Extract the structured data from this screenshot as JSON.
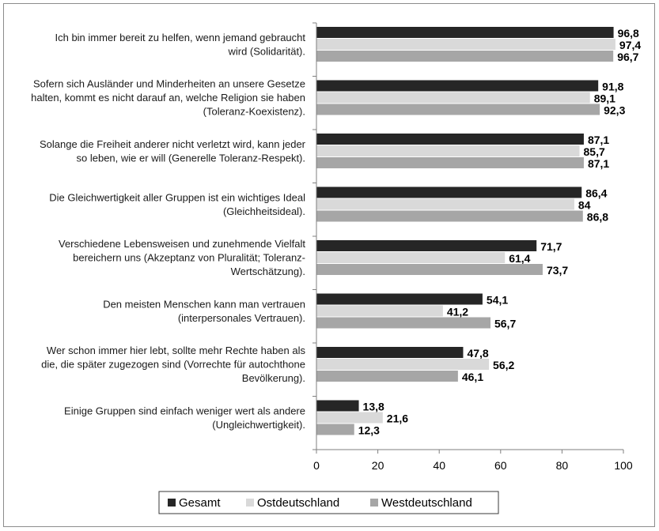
{
  "chart_data": {
    "type": "bar",
    "orientation": "horizontal",
    "categories": [
      [
        "Ich bin immer bereit zu helfen, wenn jemand gebraucht",
        "wird (Solidarität)."
      ],
      [
        "Sofern sich Ausländer und Minderheiten an unsere Gesetze",
        "halten, kommt es nicht darauf an, welche Religion sie haben",
        "(Toleranz-Koexistenz)."
      ],
      [
        "Solange die Freiheit anderer nicht verletzt wird, kann jeder",
        "so leben, wie er will (Generelle Toleranz-Respekt)."
      ],
      [
        "Die Gleichwertigkeit aller Gruppen ist ein wichtiges Ideal",
        "(Gleichheitsideal)."
      ],
      [
        "Verschiedene Lebensweisen und zunehmende Vielfalt",
        "bereichern uns (Akzeptanz von Pluralität; Toleranz-",
        "Wertschätzung)."
      ],
      [
        "Den meisten Menschen kann man vertrauen",
        "(interpersonales Vertrauen)."
      ],
      [
        "Wer schon immer hier lebt, sollte mehr Rechte haben als",
        "die, die später zugezogen sind (Vorrechte für autochthone",
        "Bevölkerung)."
      ],
      [
        "Einige Gruppen sind einfach weniger wert als andere",
        "(Ungleichwertigkeit)."
      ]
    ],
    "series": [
      {
        "name": "Gesamt",
        "color": "#262626",
        "values": [
          96.8,
          91.8,
          87.1,
          86.4,
          71.7,
          54.1,
          47.8,
          13.8
        ],
        "labels": [
          "96,8",
          "91,8",
          "87,1",
          "86,4",
          "71,7",
          "54,1",
          "47,8",
          "13,8"
        ]
      },
      {
        "name": "Ostdeutschland",
        "color": "#d9d9d9",
        "values": [
          97.4,
          89.1,
          85.7,
          84,
          61.4,
          41.2,
          56.2,
          21.6
        ],
        "labels": [
          "97,4",
          "89,1",
          "85,7",
          "84",
          "61,4",
          "41,2",
          "56,2",
          "21,6"
        ]
      },
      {
        "name": "Westdeutschland",
        "color": "#a6a6a6",
        "values": [
          96.7,
          92.3,
          87.1,
          86.8,
          73.7,
          56.7,
          46.1,
          12.3
        ],
        "labels": [
          "96,7",
          "92,3",
          "87,1",
          "86,8",
          "73,7",
          "56,7",
          "46,1",
          "12,3"
        ]
      }
    ],
    "xlim": [
      0,
      100
    ],
    "xticks": [
      "0",
      "20",
      "40",
      "60",
      "80",
      "100"
    ],
    "legend_position": "bottom",
    "grid": false
  }
}
